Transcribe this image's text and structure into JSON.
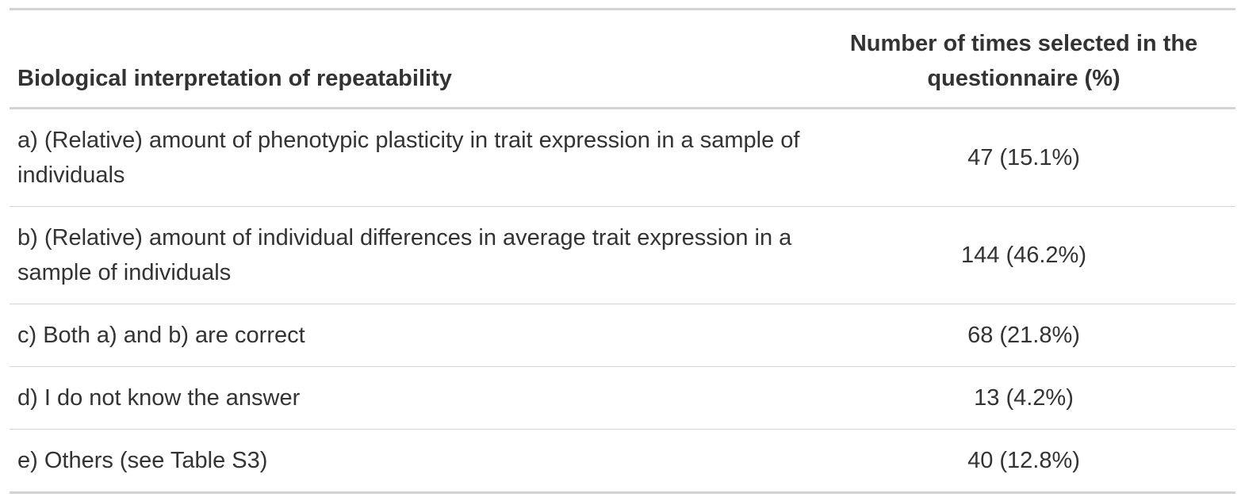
{
  "table": {
    "headers": {
      "interpretation": "Biological interpretation of repeatability",
      "times_selected": "Number of times selected in the questionnaire (%)"
    },
    "rows": [
      {
        "label": "a) (Relative) amount of phenotypic plasticity in trait expression in a sample of individuals",
        "value": "47 (15.1%)"
      },
      {
        "label": "b) (Relative) amount of individual differences in average trait expression in a sample of individuals",
        "value": "144 (46.2%)"
      },
      {
        "label": "c) Both a) and b) are correct",
        "value": "68 (21.8%)"
      },
      {
        "label": "d) I do not know the answer",
        "value": "13 (4.2%)"
      },
      {
        "label": "e) Others (see Table S3)",
        "value": "40 (12.8%)"
      }
    ]
  },
  "colors": {
    "text": "#333333",
    "rule": "#d3d3d3",
    "background": "#ffffff"
  }
}
